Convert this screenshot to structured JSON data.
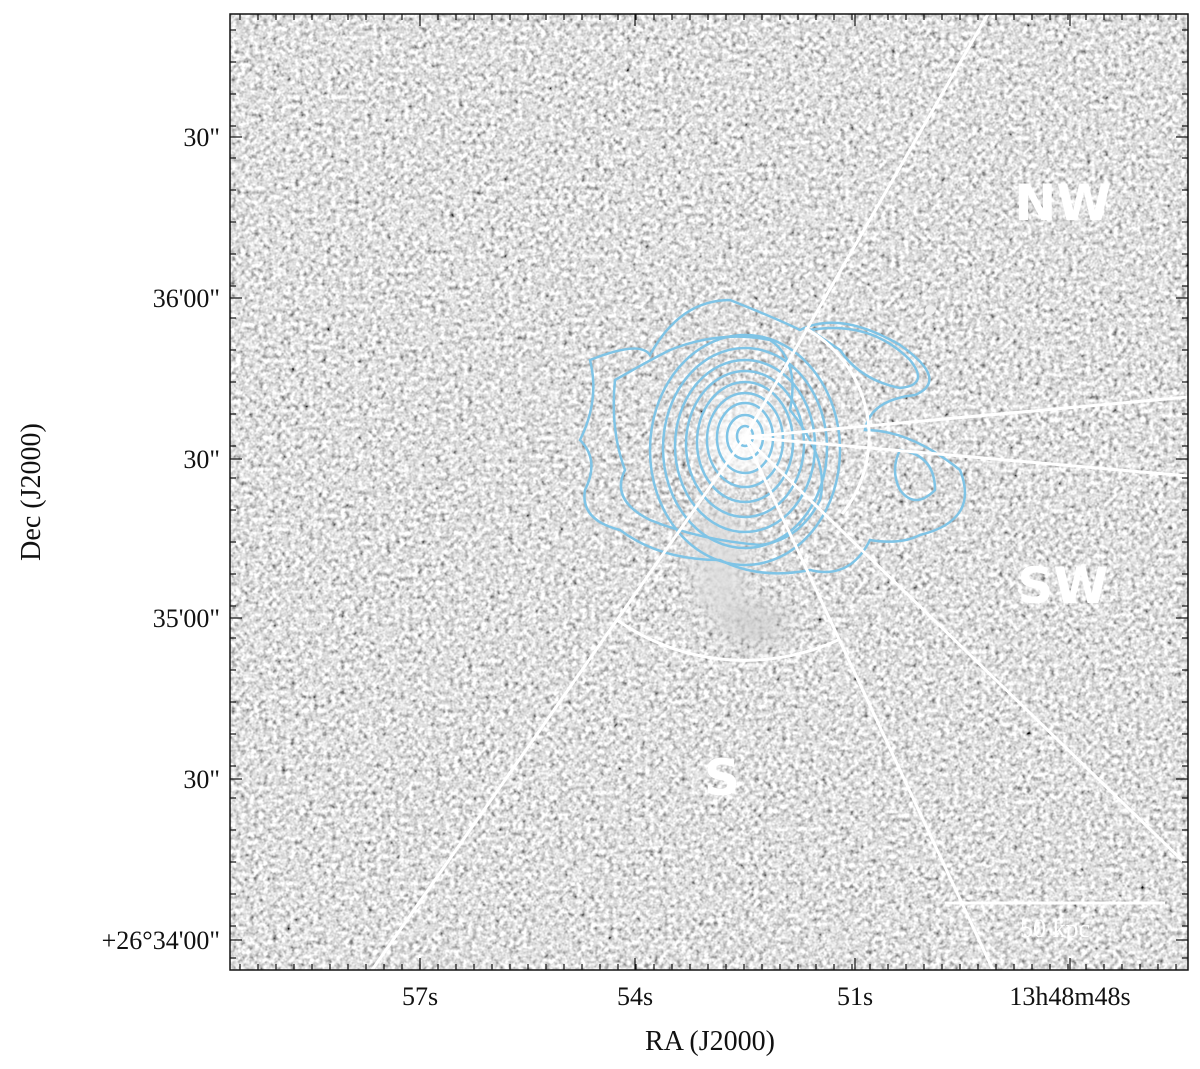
{
  "axes": {
    "x_label": "RA (J2000)",
    "y_label": "Dec (J2000)",
    "x_ticks": [
      "57s",
      "54s",
      "51s",
      "13h48m48s"
    ],
    "y_ticks": [
      "30\"",
      "36'00\"",
      "30\"",
      "35'00\"",
      "30\"",
      "+26°34'00\""
    ]
  },
  "regions": [
    "NW",
    "SW",
    "S"
  ],
  "scale_bar": "50 kpc"
}
